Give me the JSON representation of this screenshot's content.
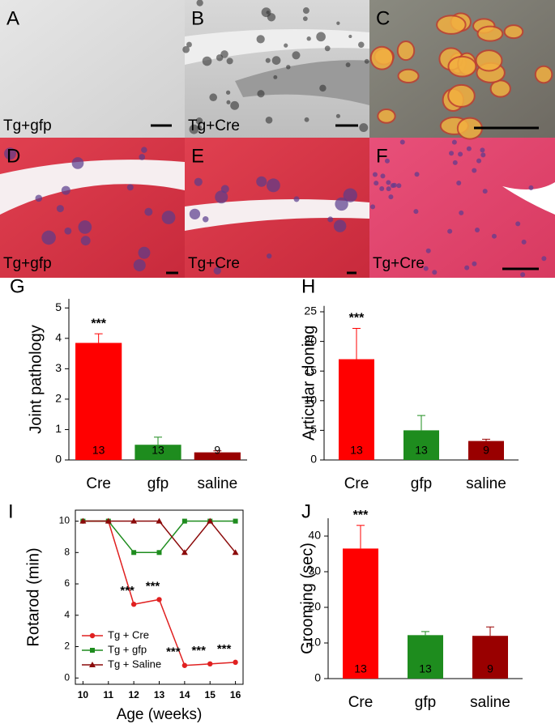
{
  "panels": [
    {
      "letter": "A",
      "caption": "Tg+gfp"
    },
    {
      "letter": "B",
      "caption": "Tg+Cre"
    },
    {
      "letter": "C"
    },
    {
      "letter": "D",
      "caption": "Tg+gfp"
    },
    {
      "letter": "E",
      "caption": "Tg+Cre"
    },
    {
      "letter": "F",
      "caption": "Tg+Cre"
    }
  ],
  "chart_data": [
    {
      "letter": "G",
      "type": "bar",
      "ylabel": "Joint pathology",
      "categories": [
        "Cre",
        "gfp",
        "saline"
      ],
      "values": [
        3.85,
        0.5,
        0.25
      ],
      "errors": [
        0.3,
        0.25,
        0.05
      ],
      "n_labels": [
        13,
        13,
        9
      ],
      "significance": [
        "***",
        null,
        null
      ],
      "colors": [
        "#ff0000",
        "#1e8c1e",
        "#990000"
      ],
      "ylim": [
        0,
        5.3
      ],
      "yticks": [
        0,
        1,
        2,
        3,
        4,
        5
      ]
    },
    {
      "letter": "H",
      "type": "bar",
      "ylabel": "Articular cloning",
      "categories": [
        "Cre",
        "gfp",
        "saline"
      ],
      "values": [
        17,
        5,
        3.2
      ],
      "errors": [
        5.2,
        2.5,
        0.3
      ],
      "n_labels": [
        13,
        13,
        9
      ],
      "significance": [
        "***",
        null,
        null
      ],
      "colors": [
        "#ff0000",
        "#1e8c1e",
        "#990000"
      ],
      "ylim": [
        0,
        26
      ],
      "yticks": [
        0,
        5,
        10,
        15,
        20,
        25
      ]
    },
    {
      "letter": "I",
      "type": "line",
      "ylabel": "Rotarod (min)",
      "xlabel": "Age (weeks)",
      "x": [
        10,
        11,
        12,
        13,
        14,
        15,
        16
      ],
      "series": [
        {
          "name": "Tg + Cre",
          "color": "#e02020",
          "marker": "circle",
          "values": [
            10,
            10,
            4.7,
            5,
            0.8,
            0.9,
            1.0
          ]
        },
        {
          "name": "Tg + gfp",
          "color": "#1e8c1e",
          "marker": "square",
          "values": [
            10,
            10,
            8,
            8,
            10,
            10,
            10
          ]
        },
        {
          "name": "Tg + Saline",
          "color": "#8b0a0a",
          "marker": "triangle",
          "values": [
            10,
            10,
            10,
            10,
            8,
            10,
            8
          ]
        }
      ],
      "significance": [
        null,
        null,
        "***",
        "***",
        "***",
        "***",
        "***"
      ],
      "xlim": [
        9.7,
        16.3
      ],
      "xticks": [
        10,
        11,
        12,
        13,
        14,
        15,
        16
      ],
      "ylim": [
        -0.4,
        10.7
      ],
      "yticks": [
        0,
        2,
        4,
        6,
        8,
        10
      ],
      "legend": "lower left"
    },
    {
      "letter": "J",
      "type": "bar",
      "ylabel": "Grooming (sec)",
      "categories": [
        "Cre",
        "gfp",
        "saline"
      ],
      "values": [
        36.5,
        12.2,
        12
      ],
      "errors": [
        6.5,
        1,
        2.5
      ],
      "n_labels": [
        13,
        13,
        9
      ],
      "significance": [
        "***",
        null,
        null
      ],
      "colors": [
        "#ff0000",
        "#1e8c1e",
        "#990000"
      ],
      "ylim": [
        0,
        45
      ],
      "yticks": [
        0,
        10,
        20,
        30,
        40
      ]
    }
  ]
}
